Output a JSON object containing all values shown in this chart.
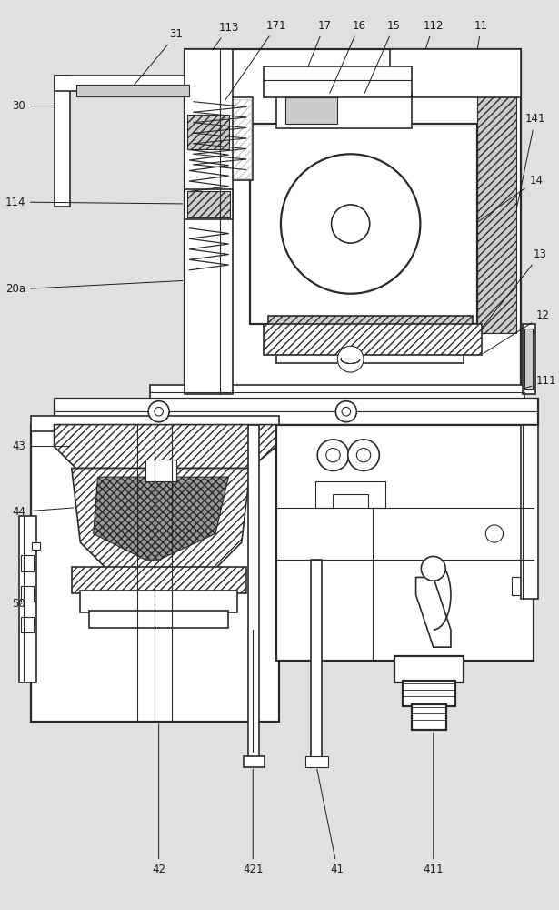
{
  "bg_color": "#e0e0e0",
  "line_color": "#2a2a2a",
  "fig_width": 6.15,
  "fig_height": 10.0,
  "dpi": 100,
  "annotation_fontsize": 8.5,
  "annotation_color": "#1a1a1a"
}
